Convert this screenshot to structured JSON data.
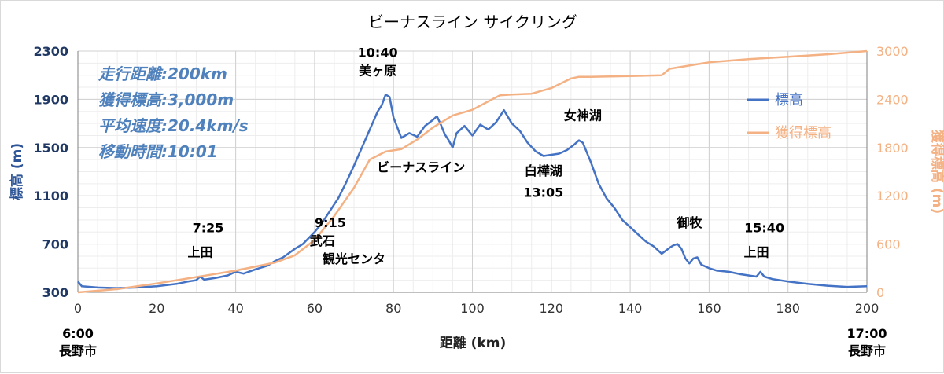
{
  "chart_data": {
    "type": "line",
    "title": "ビーナスライン サイクリング",
    "xlabel": "距離 (km)",
    "ylabel": "標高 (m)",
    "y2label": "獲得標高 (m)",
    "xlim": [
      0,
      200
    ],
    "ylim": [
      300,
      2300
    ],
    "y2lim": [
      0,
      3000
    ],
    "xticks": [
      "0",
      "20",
      "40",
      "60",
      "80",
      "100",
      "120",
      "140",
      "160",
      "180",
      "200"
    ],
    "yticks": [
      "300",
      "700",
      "1100",
      "1500",
      "1900",
      "2300"
    ],
    "y2ticks": [
      "0",
      "600",
      "1200",
      "1800",
      "2400",
      "3000"
    ],
    "grid": true,
    "legend_position": "right",
    "series": [
      {
        "name": "標高",
        "axis": "left",
        "color": "#4472c4",
        "x": [
          0,
          1,
          5,
          10,
          15,
          20,
          25,
          28,
          30,
          31,
          32,
          35,
          38,
          40,
          42,
          45,
          48,
          50,
          52,
          55,
          57,
          60,
          62,
          64,
          66,
          68,
          70,
          72,
          74,
          76,
          77,
          78,
          79,
          80,
          82,
          84,
          86,
          88,
          90,
          91,
          92,
          93,
          94,
          95,
          96,
          98,
          100,
          102,
          104,
          106,
          108,
          110,
          112,
          114,
          116,
          118,
          120,
          122,
          124,
          126,
          127,
          128,
          130,
          132,
          134,
          136,
          138,
          140,
          142,
          144,
          146,
          148,
          150,
          151,
          152,
          153,
          154,
          155,
          156,
          157,
          158,
          160,
          162,
          165,
          168,
          170,
          172,
          173,
          174,
          176,
          180,
          185,
          190,
          195,
          200
        ],
        "y": [
          390,
          350,
          340,
          335,
          340,
          350,
          370,
          390,
          400,
          430,
          405,
          420,
          440,
          470,
          455,
          490,
          520,
          560,
          590,
          660,
          700,
          800,
          880,
          980,
          1080,
          1210,
          1350,
          1500,
          1650,
          1800,
          1850,
          1940,
          1920,
          1750,
          1580,
          1620,
          1590,
          1680,
          1730,
          1760,
          1690,
          1610,
          1560,
          1500,
          1620,
          1680,
          1600,
          1690,
          1650,
          1710,
          1810,
          1700,
          1640,
          1540,
          1470,
          1430,
          1440,
          1450,
          1480,
          1530,
          1560,
          1540,
          1380,
          1200,
          1080,
          1000,
          900,
          840,
          780,
          720,
          680,
          620,
          670,
          690,
          700,
          660,
          580,
          540,
          580,
          590,
          530,
          500,
          480,
          470,
          450,
          440,
          430,
          470,
          430,
          410,
          390,
          370,
          355,
          345,
          350
        ]
      },
      {
        "name": "獲得標高",
        "axis": "right",
        "color": "#f4b183",
        "x": [
          0,
          10,
          20,
          30,
          40,
          50,
          55,
          60,
          65,
          70,
          74,
          78,
          82,
          86,
          90,
          95,
          100,
          105,
          107,
          110,
          115,
          120,
          125,
          127,
          130,
          140,
          148,
          150,
          155,
          160,
          170,
          180,
          190,
          200
        ],
        "y": [
          0,
          40,
          110,
          190,
          270,
          370,
          460,
          650,
          950,
          1300,
          1650,
          1750,
          1780,
          1900,
          2050,
          2200,
          2270,
          2400,
          2450,
          2460,
          2470,
          2540,
          2660,
          2680,
          2680,
          2690,
          2700,
          2780,
          2820,
          2860,
          2900,
          2930,
          2960,
          3000
        ]
      }
    ],
    "annotations": [
      {
        "text": "10:40",
        "x": 76,
        "y": 2250
      },
      {
        "text": "美ヶ原",
        "x": 76,
        "y": 2100
      },
      {
        "text": "ビーナスライン",
        "x": 87,
        "y": 1300
      },
      {
        "text": "女神湖",
        "x": 128,
        "y": 1730
      },
      {
        "text": "白樺湖",
        "x": 118,
        "y": 1270
      },
      {
        "text": "13:05",
        "x": 118,
        "y": 1090
      },
      {
        "text": "7:25",
        "x": 33,
        "y": 800
      },
      {
        "text": "上田",
        "x": 31,
        "y": 595
      },
      {
        "text": "9:15",
        "x": 64,
        "y": 840
      },
      {
        "text": "武石",
        "x": 62,
        "y": 690
      },
      {
        "text": "観光センタ",
        "x": 70,
        "y": 540
      },
      {
        "text": "御牧",
        "x": 155,
        "y": 840
      },
      {
        "text": "15:40",
        "x": 174,
        "y": 800
      },
      {
        "text": "上田",
        "x": 172,
        "y": 595
      }
    ],
    "stats": [
      "走行距離:200km",
      "獲得標高:3,000m",
      "平均速度:20.4km/s",
      "移動時間:10:01"
    ],
    "start_label": {
      "time": "6:00",
      "place": "長野市"
    },
    "end_label": {
      "time": "17:00",
      "place": "長野市"
    }
  }
}
